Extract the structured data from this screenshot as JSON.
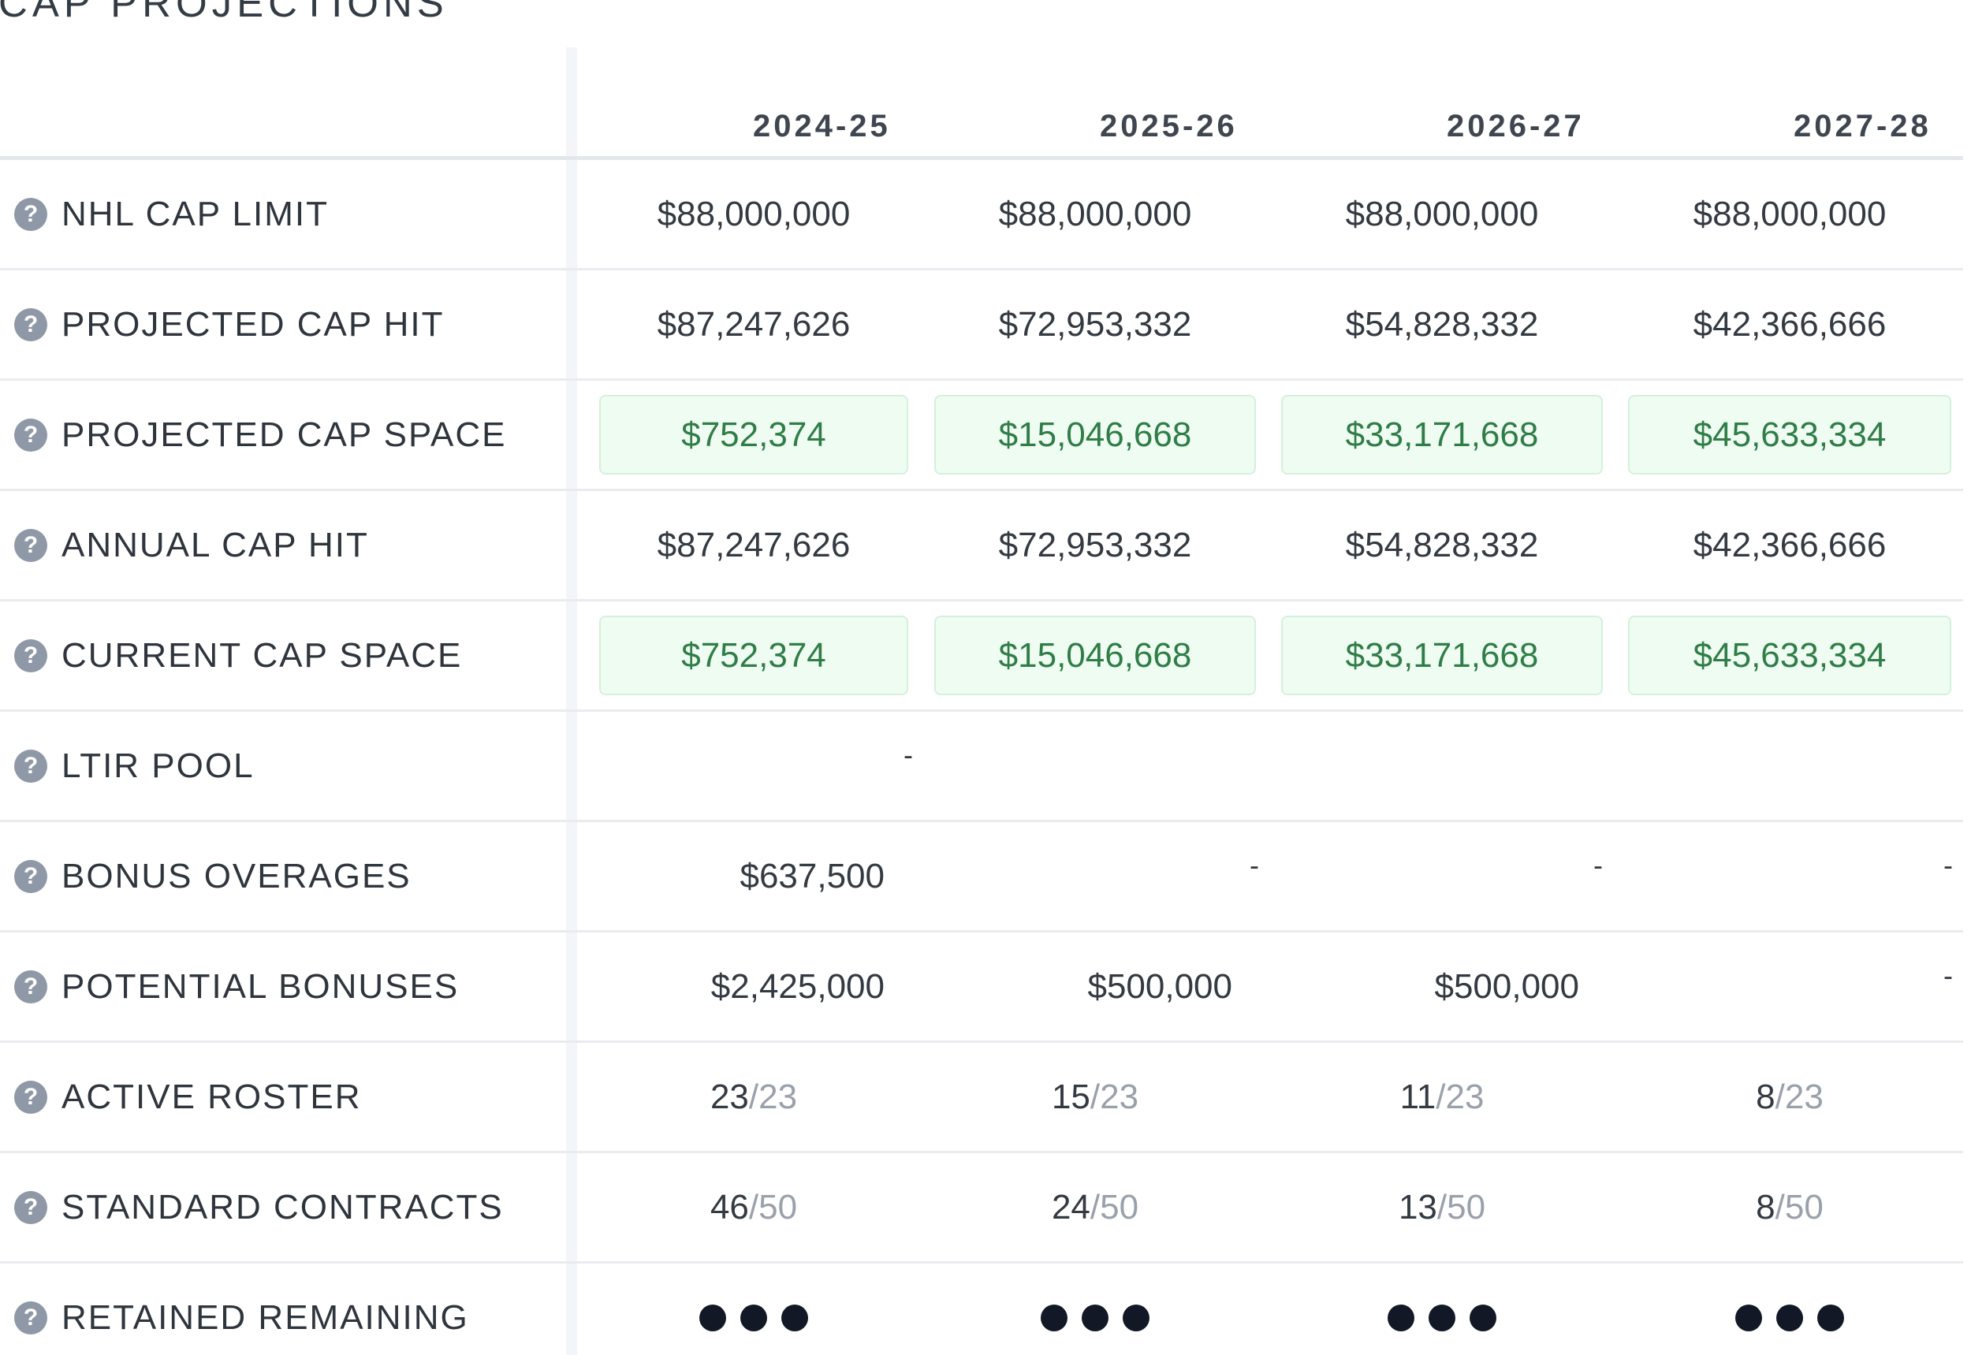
{
  "section": {
    "title": "CAP PROJECTIONS"
  },
  "seasons": [
    "2024-25",
    "2025-26",
    "2026-27",
    "2027-28"
  ],
  "help_icon_glyph": "?",
  "rows": [
    {
      "label": "NHL CAP LIMIT",
      "values": [
        "$88,000,000",
        "$88,000,000",
        "$88,000,000",
        "$88,000,000"
      ]
    },
    {
      "label": "PROJECTED CAP HIT",
      "values": [
        "$87,247,626",
        "$72,953,332",
        "$54,828,332",
        "$42,366,666"
      ]
    },
    {
      "label": "PROJECTED CAP SPACE",
      "values": [
        "$752,374",
        "$15,046,668",
        "$33,171,668",
        "$45,633,334"
      ],
      "highlight": "#effcf2"
    },
    {
      "label": "ANNUAL CAP HIT",
      "values": [
        "$87,247,626",
        "$72,953,332",
        "$54,828,332",
        "$42,366,666"
      ]
    },
    {
      "label": "CURRENT CAP SPACE",
      "values": [
        "$752,374",
        "$15,046,668",
        "$33,171,668",
        "$45,633,334"
      ],
      "highlight": "#effcf2"
    },
    {
      "label": "LTIR POOL",
      "values": [
        "-"
      ]
    },
    {
      "label": "BONUS OVERAGES",
      "values": [
        "$637,500",
        "-",
        "-",
        "-"
      ]
    },
    {
      "label": "POTENTIAL BONUSES",
      "values": [
        "$2,425,000",
        "$500,000",
        "$500,000",
        "-"
      ]
    },
    {
      "label": "ACTIVE ROSTER",
      "values": [
        {
          "count": "23",
          "max": "/23"
        },
        {
          "count": "15",
          "max": "/23"
        },
        {
          "count": "11",
          "max": "/23"
        },
        {
          "count": "8",
          "max": "/23"
        }
      ]
    },
    {
      "label": "STANDARD CONTRACTS",
      "values": [
        {
          "count": "46",
          "max": "/50"
        },
        {
          "count": "24",
          "max": "/50"
        },
        {
          "count": "13",
          "max": "/50"
        },
        {
          "count": "8",
          "max": "/50"
        }
      ]
    },
    {
      "label": "RETAINED REMAINING",
      "retained_slots": [
        3,
        3,
        3,
        3
      ]
    }
  ],
  "colors": {
    "space_highlight_bg": "#effcf2",
    "space_text": "#2f7d47",
    "denominator_text": "#9aa1ab",
    "retained_dot": "#121826",
    "help_icon": "#8f98a6"
  }
}
